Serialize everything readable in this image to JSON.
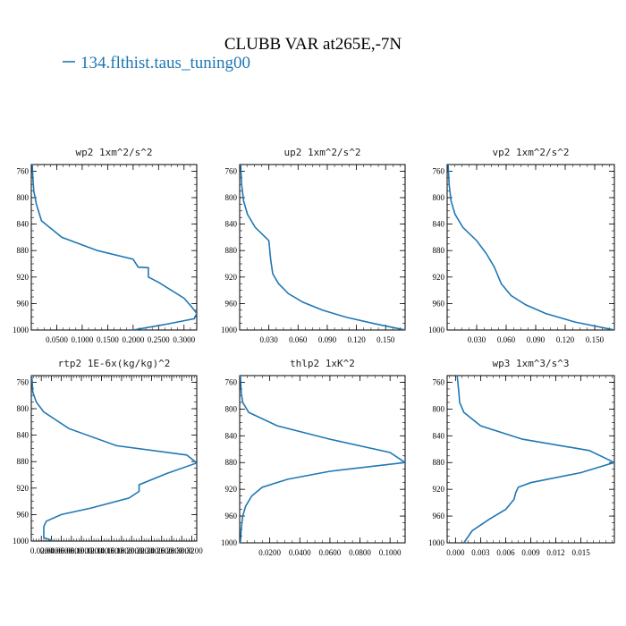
{
  "figure": {
    "title": "CLUBB VAR at265E,-7N",
    "legend": [
      {
        "name": "134.flthist.taus_tuning00",
        "color": "#1f77b4"
      }
    ]
  },
  "chart_data": [
    {
      "type": "line",
      "title": "wp2   1xm^2/s^2",
      "series_color": "#1f77b4",
      "xlim": [
        0.0,
        0.325
      ],
      "ylim": [
        1000,
        750
      ],
      "xticks": [
        0.05,
        0.1,
        0.15,
        0.2,
        0.25,
        0.3
      ],
      "xtick_labels": [
        "0.0500",
        "0.1000",
        "0.1500",
        "0.2000",
        "0.2500",
        "0.3000"
      ],
      "yticks": [
        760,
        800,
        840,
        880,
        920,
        960,
        1000
      ],
      "ytick_labels": [
        "760",
        "800",
        "840",
        "880",
        "920",
        "960",
        "1000"
      ],
      "series": [
        {
          "x": [
            0.002,
            0.003,
            0.005,
            0.01,
            0.02,
            0.06,
            0.13,
            0.2,
            0.21,
            0.23,
            0.23,
            0.25,
            0.3,
            0.315,
            0.325,
            0.32,
            0.26,
            0.2
          ],
          "y": [
            750,
            770,
            790,
            810,
            835,
            860,
            880,
            893,
            905,
            906,
            920,
            928,
            952,
            965,
            975,
            983,
            992,
            1000
          ]
        }
      ]
    },
    {
      "type": "line",
      "title": "up2   1xm^2/s^2",
      "series_color": "#1f77b4",
      "xlim": [
        0.0,
        0.17
      ],
      "ylim": [
        1000,
        750
      ],
      "xticks": [
        0.03,
        0.06,
        0.09,
        0.12,
        0.15
      ],
      "xtick_labels": [
        "0.030",
        "0.060",
        "0.090",
        "0.120",
        "0.150"
      ],
      "yticks": [
        760,
        800,
        840,
        880,
        920,
        960,
        1000
      ],
      "ytick_labels": [
        "760",
        "800",
        "840",
        "880",
        "920",
        "960",
        "1000"
      ],
      "series": [
        {
          "x": [
            0.001,
            0.002,
            0.004,
            0.008,
            0.016,
            0.03,
            0.032,
            0.034,
            0.04,
            0.05,
            0.065,
            0.085,
            0.11,
            0.14,
            0.17
          ],
          "y": [
            750,
            780,
            805,
            825,
            845,
            865,
            895,
            915,
            930,
            945,
            958,
            970,
            981,
            991,
            1000
          ]
        }
      ]
    },
    {
      "type": "line",
      "title": "vp2   1xm^2/s^2",
      "series_color": "#1f77b4",
      "xlim": [
        0.0,
        0.17
      ],
      "ylim": [
        1000,
        750
      ],
      "xticks": [
        0.03,
        0.06,
        0.09,
        0.12,
        0.15
      ],
      "xtick_labels": [
        "0.030",
        "0.060",
        "0.090",
        "0.120",
        "0.150"
      ],
      "yticks": [
        760,
        800,
        840,
        880,
        920,
        960,
        1000
      ],
      "ytick_labels": [
        "760",
        "800",
        "840",
        "880",
        "920",
        "960",
        "1000"
      ],
      "series": [
        {
          "x": [
            0.001,
            0.002,
            0.004,
            0.008,
            0.016,
            0.03,
            0.04,
            0.048,
            0.055,
            0.065,
            0.08,
            0.1,
            0.13,
            0.17
          ],
          "y": [
            750,
            780,
            805,
            825,
            845,
            865,
            885,
            905,
            930,
            948,
            962,
            975,
            988,
            1000
          ]
        }
      ]
    },
    {
      "type": "line",
      "title": "rtp2   1E-6x(kg/kg)^2",
      "series_color": "#1f77b4",
      "xlim": [
        0.0,
        0.33
      ],
      "ylim": [
        1000,
        750
      ],
      "xticks": [
        0.02,
        0.04,
        0.06,
        0.08,
        0.1,
        0.12,
        0.14,
        0.16,
        0.18,
        0.2,
        0.22,
        0.24,
        0.26,
        0.28,
        0.3,
        0.32
      ],
      "xtick_labels": [
        "0.0200",
        "0.0400",
        "0.0600",
        "0.0800",
        "0.1000",
        "0.1200",
        "0.1400",
        "0.1600",
        "0.1800",
        "0.2000",
        "0.2200",
        "0.2400",
        "0.2600",
        "0.2800",
        "0.3000",
        "0.3200"
      ],
      "yticks": [
        760,
        800,
        840,
        880,
        920,
        960,
        1000
      ],
      "ytick_labels": [
        "760",
        "800",
        "840",
        "880",
        "920",
        "960",
        "1000"
      ],
      "series": [
        {
          "x": [
            0.001,
            0.003,
            0.01,
            0.025,
            0.075,
            0.17,
            0.31,
            0.33,
            0.27,
            0.215,
            0.215,
            0.195,
            0.12,
            0.06,
            0.03,
            0.025,
            0.025,
            0.045
          ],
          "y": [
            750,
            775,
            790,
            805,
            830,
            856,
            870,
            882,
            898,
            915,
            925,
            935,
            950,
            960,
            970,
            978,
            995,
            1000
          ]
        }
      ]
    },
    {
      "type": "line",
      "title": "thlp2   1xK^2",
      "series_color": "#1f77b4",
      "xlim": [
        0.0,
        0.11
      ],
      "ylim": [
        1000,
        750
      ],
      "xticks": [
        0.02,
        0.04,
        0.06,
        0.08,
        0.1
      ],
      "xtick_labels": [
        "0.0200",
        "0.0400",
        "0.0600",
        "0.0800",
        "0.1000"
      ],
      "yticks": [
        760,
        800,
        840,
        880,
        920,
        960,
        1000
      ],
      "ytick_labels": [
        "760",
        "800",
        "840",
        "880",
        "920",
        "960",
        "1000"
      ],
      "series": [
        {
          "x": [
            0.0005,
            0.001,
            0.002,
            0.006,
            0.025,
            0.06,
            0.1,
            0.11,
            0.06,
            0.032,
            0.015,
            0.008,
            0.004,
            0.002,
            0.001,
            0.0005
          ],
          "y": [
            750,
            775,
            790,
            805,
            825,
            845,
            865,
            880,
            893,
            905,
            917,
            930,
            945,
            960,
            980,
            1000
          ]
        }
      ]
    },
    {
      "type": "line",
      "title": "wp3   1xm^3/s^3",
      "series_color": "#1f77b4",
      "xlim": [
        -0.001,
        0.019
      ],
      "ylim": [
        1000,
        750
      ],
      "xticks": [
        0.0,
        0.003,
        0.006,
        0.009,
        0.012,
        0.015
      ],
      "xtick_labels": [
        "0.000",
        "0.003",
        "0.006",
        "0.009",
        "0.012",
        "0.015"
      ],
      "yticks": [
        760,
        800,
        840,
        880,
        920,
        960,
        1000
      ],
      "ytick_labels": [
        "760",
        "800",
        "840",
        "880",
        "920",
        "960",
        "1000"
      ],
      "series": [
        {
          "x": [
            0.0002,
            0.0004,
            0.0005,
            0.001,
            0.003,
            0.008,
            0.016,
            0.019,
            0.015,
            0.009,
            0.0075,
            0.0072,
            0.007,
            0.006,
            0.004,
            0.002,
            0.001
          ],
          "y": [
            750,
            775,
            790,
            805,
            825,
            845,
            862,
            880,
            895,
            910,
            917,
            925,
            935,
            950,
            965,
            982,
            1000
          ]
        }
      ]
    }
  ]
}
